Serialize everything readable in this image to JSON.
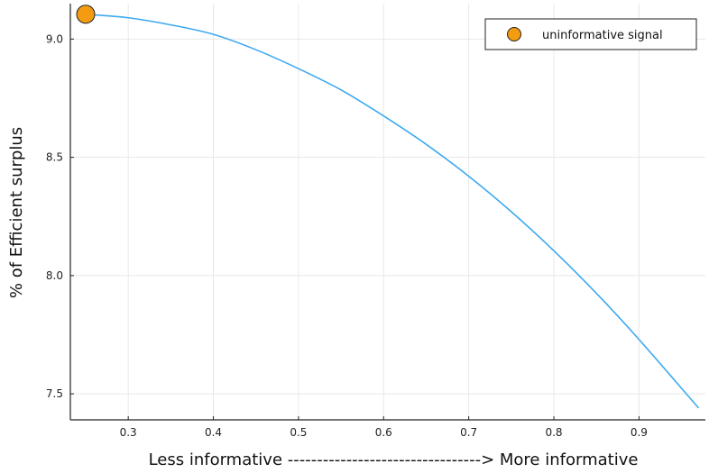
{
  "chart_data": {
    "type": "line",
    "title": "",
    "xlabel": "Less informative ---------------------------------> More informative",
    "ylabel": "% of Efficient surplus",
    "xlim": [
      0.232,
      0.978
    ],
    "ylim": [
      7.39,
      9.15
    ],
    "x_ticks": [
      0.3,
      0.4,
      0.5,
      0.6,
      0.7,
      0.8,
      0.9
    ],
    "x_tick_labels": [
      "0.3",
      "0.4",
      "0.5",
      "0.6",
      "0.7",
      "0.8",
      "0.9"
    ],
    "y_ticks": [
      7.5,
      8.0,
      8.5,
      9.0
    ],
    "y_tick_labels": [
      "7.5",
      "8.0",
      "8.5",
      "9.0"
    ],
    "grid": true,
    "legend_position": "top-right",
    "series": [
      {
        "type": "line",
        "color": "#3da9f0",
        "x": [
          0.25,
          0.3,
          0.35,
          0.4,
          0.45,
          0.5,
          0.55,
          0.6,
          0.65,
          0.7,
          0.75,
          0.8,
          0.85,
          0.9,
          0.97
        ],
        "y": [
          9.105,
          9.09,
          9.06,
          9.02,
          8.955,
          8.875,
          8.785,
          8.675,
          8.555,
          8.42,
          8.27,
          8.105,
          7.925,
          7.73,
          7.44
        ]
      },
      {
        "type": "scatter",
        "name": "uninformative signal",
        "color": "#f39c12",
        "x": [
          0.25
        ],
        "y": [
          9.105
        ]
      }
    ]
  }
}
